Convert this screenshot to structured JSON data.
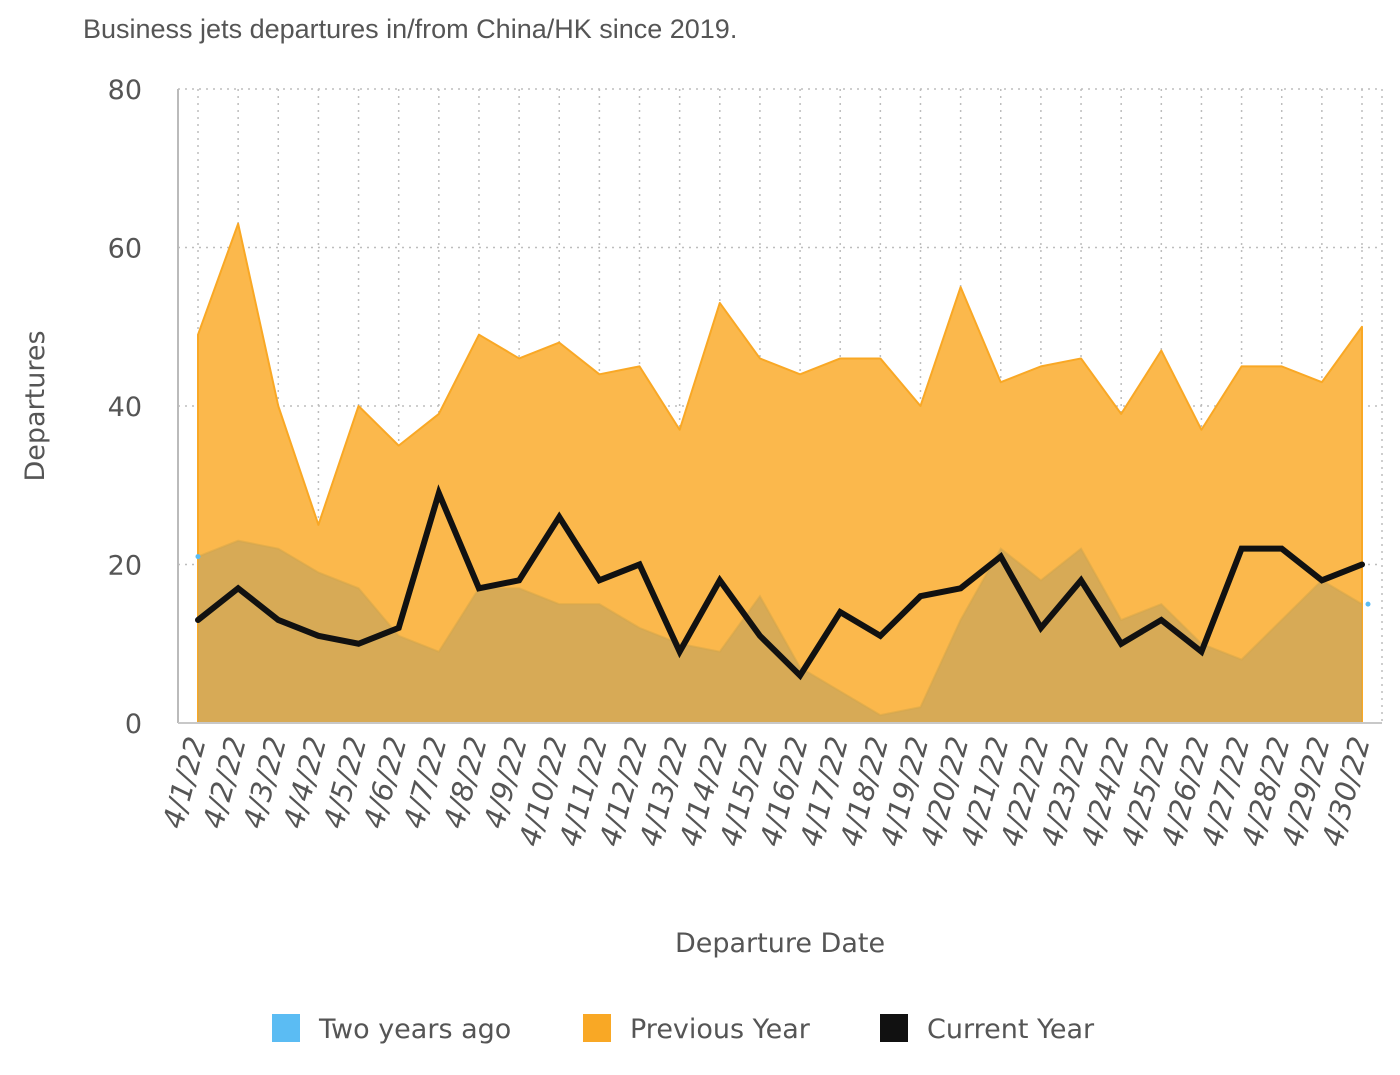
{
  "chart_data": {
    "type": "area",
    "title": "Business jets departures in/from China/HK since 2019.",
    "xlabel": "Departure Date",
    "ylabel": "Departures",
    "ylim": [
      0,
      80
    ],
    "yticks": [
      0,
      20,
      40,
      60,
      80
    ],
    "grid": true,
    "legend_position": "bottom",
    "categories": [
      "4/1/22",
      "4/2/22",
      "4/3/22",
      "4/4/22",
      "4/5/22",
      "4/6/22",
      "4/7/22",
      "4/8/22",
      "4/9/22",
      "4/10/22",
      "4/11/22",
      "4/12/22",
      "4/13/22",
      "4/14/22",
      "4/15/22",
      "4/16/22",
      "4/17/22",
      "4/18/22",
      "4/19/22",
      "4/20/22",
      "4/21/22",
      "4/22/22",
      "4/23/22",
      "4/24/22",
      "4/25/22",
      "4/26/22",
      "4/27/22",
      "4/28/22",
      "4/29/22",
      "4/30/22"
    ],
    "series": [
      {
        "name": "Two years ago",
        "type": "area",
        "color": "#5bbcf3",
        "values": [
          21,
          23,
          22,
          19,
          17,
          11,
          9,
          17,
          17,
          15,
          15,
          12,
          10,
          9,
          16,
          7,
          4,
          1,
          2,
          13,
          22,
          18,
          22,
          13,
          15,
          10,
          8,
          13,
          18,
          15
        ]
      },
      {
        "name": "Previous Year",
        "type": "area",
        "color": "#f9a825",
        "values": [
          49,
          63,
          40,
          25,
          40,
          35,
          39,
          49,
          46,
          48,
          44,
          45,
          37,
          53,
          46,
          44,
          46,
          46,
          40,
          55,
          43,
          45,
          46,
          39,
          47,
          37,
          45,
          45,
          43,
          50
        ]
      },
      {
        "name": "Current Year",
        "type": "line",
        "color": "#111111",
        "values": [
          13,
          17,
          13,
          11,
          10,
          12,
          29,
          17,
          18,
          26,
          18,
          20,
          9,
          18,
          11,
          6,
          14,
          11,
          16,
          17,
          21,
          12,
          18,
          10,
          13,
          9,
          22,
          22,
          18,
          20
        ]
      }
    ]
  }
}
